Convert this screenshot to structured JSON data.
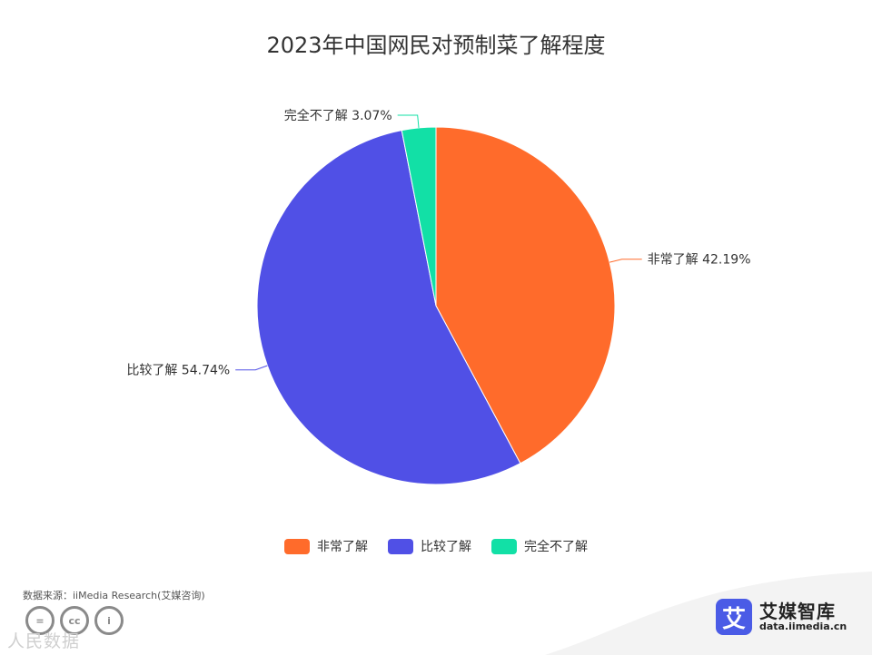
{
  "chart_data": {
    "type": "pie",
    "title": "2023年中国网民对预制菜了解程度",
    "slices": [
      {
        "name": "非常了解",
        "value": 42.19,
        "label": "非常了解 42.19%",
        "color": "#ff6b2b"
      },
      {
        "name": "比较了解",
        "value": 54.74,
        "label": "比较了解 54.74%",
        "color": "#5050e6"
      },
      {
        "name": "完全不了解",
        "value": 3.07,
        "label": "完全不了解 3.07%",
        "color": "#12e0a6"
      }
    ],
    "legend_position": "bottom-center"
  },
  "footer": {
    "source": "数据来源：iiMedia Research(艾媒咨询)",
    "watermark": "人民数据",
    "brand_name": "艾媒智库",
    "brand_url": "data.iimedia.cn",
    "brand_logo_char": "艾",
    "cc_labels": [
      "=",
      "cc",
      "i"
    ]
  }
}
